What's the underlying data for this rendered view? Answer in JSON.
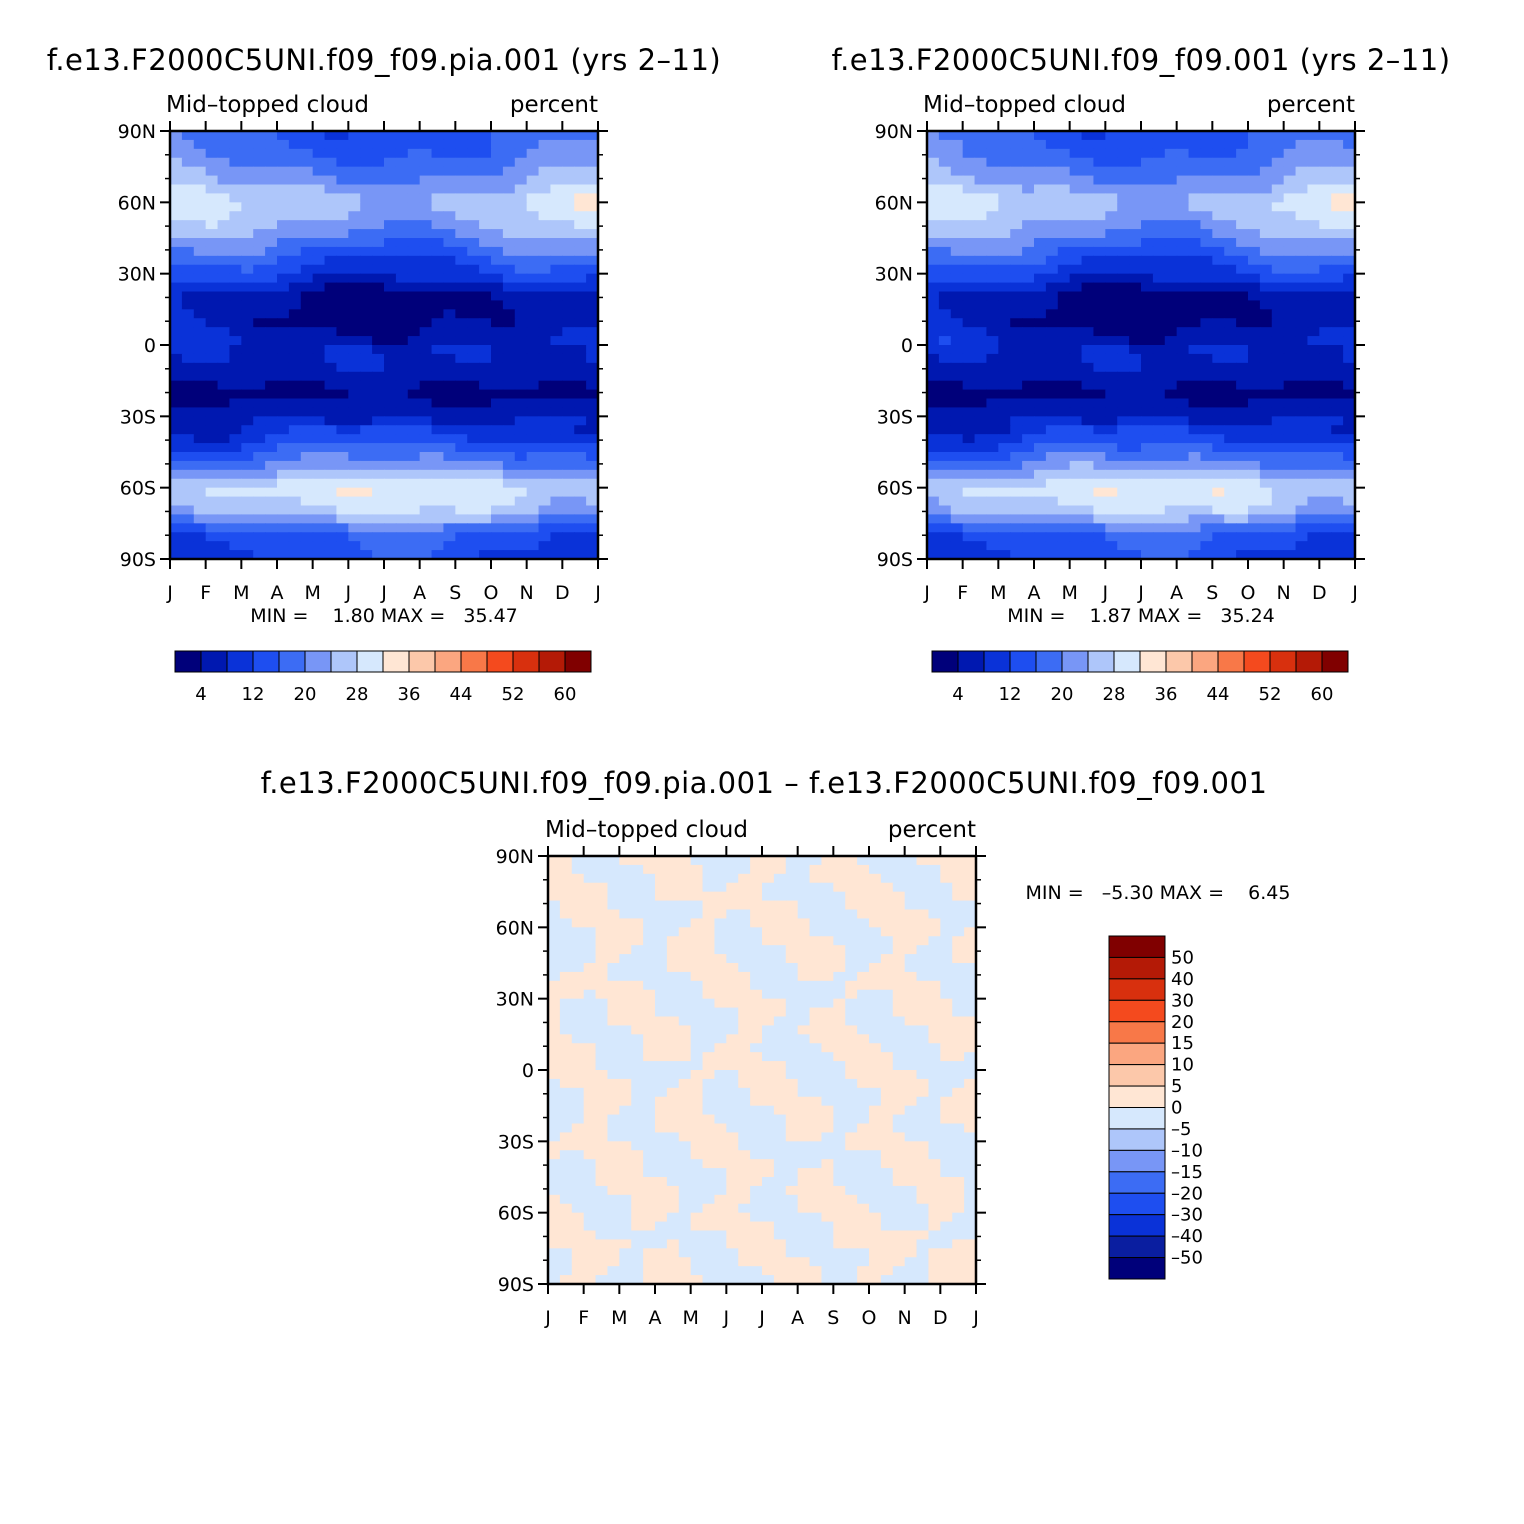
{
  "colors": {
    "seq": [
      "#00007a",
      "#0018b0",
      "#0a32d8",
      "#1e4ef0",
      "#3c6cf4",
      "#7896f6",
      "#aec6fa",
      "#d6e8fd",
      "#ffe6d4",
      "#fcc8aa",
      "#fba680",
      "#f87848",
      "#f44a1e",
      "#d8300e",
      "#b41a06",
      "#800000"
    ],
    "diff": [
      "#00007a",
      "#0a1ea0",
      "#0a32d8",
      "#1e4ef0",
      "#3c6cf4",
      "#7896f6",
      "#aec6fa",
      "#d6e8fd",
      "#ffe6d4",
      "#fcc8aa",
      "#fba680",
      "#f87848",
      "#f44a1e",
      "#d8300e",
      "#b41a06",
      "#800000"
    ]
  },
  "chart_data": [
    {
      "type": "heatmap",
      "id": "panel-control",
      "title": "f.e13.F2000C5UNI.f09_f09.pia.001 (yrs 2–11)",
      "subtitle_left": "Mid–topped cloud",
      "subtitle_right": "percent",
      "x_ticks": [
        "J",
        "F",
        "M",
        "A",
        "M",
        "J",
        "J",
        "A",
        "S",
        "O",
        "N",
        "D",
        "J"
      ],
      "y_ticks": [
        "90N",
        "60N",
        "30N",
        "0",
        "30S",
        "60S",
        "90S"
      ],
      "ylim": [
        -90,
        90
      ],
      "stats_text": "MIN =    1.80 MAX =   35.47",
      "colorbar_labels": [
        "4",
        "12",
        "20",
        "28",
        "36",
        "44",
        "52",
        "60"
      ],
      "latitudes": [
        90,
        80,
        70,
        60,
        50,
        40,
        30,
        20,
        10,
        0,
        -10,
        -20,
        -30,
        -40,
        -50,
        -60,
        -70,
        -80,
        -90
      ],
      "zonal_mean_profile": [
        16,
        18,
        22,
        28,
        24,
        18,
        12,
        4,
        4,
        8,
        7,
        3,
        7,
        12,
        20,
        30,
        26,
        15,
        12
      ]
    },
    {
      "type": "heatmap",
      "id": "panel-test",
      "title": "f.e13.F2000C5UNI.f09_f09.001 (yrs 2–11)",
      "subtitle_left": "Mid–topped cloud",
      "subtitle_right": "percent",
      "x_ticks": [
        "J",
        "F",
        "M",
        "A",
        "M",
        "J",
        "J",
        "A",
        "S",
        "O",
        "N",
        "D",
        "J"
      ],
      "y_ticks": [
        "90N",
        "60N",
        "30N",
        "0",
        "30S",
        "60S",
        "90S"
      ],
      "ylim": [
        -90,
        90
      ],
      "stats_text": "MIN =    1.87 MAX =   35.24",
      "colorbar_labels": [
        "4",
        "12",
        "20",
        "28",
        "36",
        "44",
        "52",
        "60"
      ],
      "latitudes": [
        90,
        80,
        70,
        60,
        50,
        40,
        30,
        20,
        10,
        0,
        -10,
        -20,
        -30,
        -40,
        -50,
        -60,
        -70,
        -80,
        -90
      ],
      "zonal_mean_profile": [
        16,
        18,
        22,
        28,
        24,
        18,
        12,
        4,
        4,
        8,
        7,
        3,
        7,
        12,
        20,
        30,
        26,
        15,
        12
      ]
    },
    {
      "type": "heatmap",
      "id": "panel-diff",
      "title": "f.e13.F2000C5UNI.f09_f09.pia.001 – f.e13.F2000C5UNI.f09_f09.001",
      "subtitle_left": "Mid–topped cloud",
      "subtitle_right": "percent",
      "x_ticks": [
        "J",
        "F",
        "M",
        "A",
        "M",
        "J",
        "J",
        "A",
        "S",
        "O",
        "N",
        "D",
        "J"
      ],
      "y_ticks": [
        "90N",
        "60N",
        "30N",
        "0",
        "30S",
        "60S",
        "90S"
      ],
      "ylim": [
        -90,
        90
      ],
      "stats_text": "MIN =   –5.30 MAX =    6.45",
      "colorbar_labels": [
        "50",
        "40",
        "30",
        "20",
        "15",
        "10",
        "5",
        "0",
        "–5",
        "–10",
        "–15",
        "–20",
        "–30",
        "–40",
        "–50"
      ],
      "value_range": [
        -5.3,
        6.45
      ]
    }
  ]
}
